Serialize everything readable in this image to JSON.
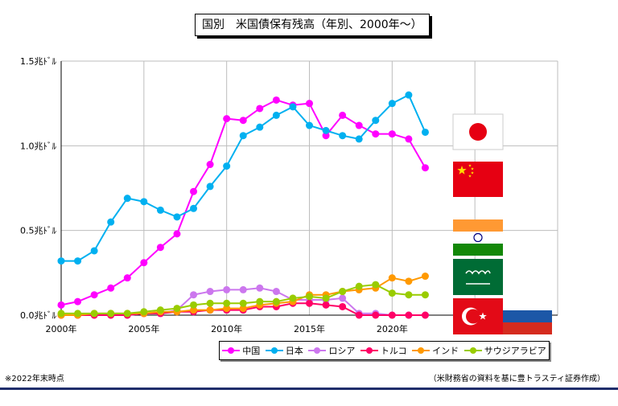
{
  "title": "国別　米国債保有残高（年別、2000年～）",
  "notes": {
    "left": "※2022年末時点",
    "right": "（米財務省の資料を基に豊トラスティ証券作成）"
  },
  "flags": [
    "japan-flag-icon",
    "china-flag-icon",
    "india-flag-icon",
    "saudi-arabia-flag-icon",
    "turkey-flag-icon",
    "russia-flag-icon"
  ],
  "chart_data": {
    "type": "line",
    "title": "国別　米国債保有残高（年別、2000年～）",
    "xlabel": "",
    "ylabel": "",
    "x": [
      2000,
      2001,
      2002,
      2003,
      2004,
      2005,
      2006,
      2007,
      2008,
      2009,
      2010,
      2011,
      2012,
      2013,
      2014,
      2015,
      2016,
      2017,
      2018,
      2019,
      2020,
      2021,
      2022
    ],
    "x_ticks": [
      {
        "value": 2000,
        "label": "2000年"
      },
      {
        "value": 2005,
        "label": "2005年"
      },
      {
        "value": 2010,
        "label": "2010年"
      },
      {
        "value": 2015,
        "label": "2015年"
      },
      {
        "value": 2020,
        "label": "2020年"
      }
    ],
    "xlim": [
      2000,
      2030
    ],
    "y_ticks": [
      {
        "value": 0,
        "label": "0.0兆ﾄﾞﾙ"
      },
      {
        "value": 0.5,
        "label": "0.5兆ﾄﾞﾙ"
      },
      {
        "value": 1.0,
        "label": "1.0兆ﾄﾞﾙ"
      },
      {
        "value": 1.5,
        "label": "1.5兆ﾄﾞﾙ"
      }
    ],
    "ylim": [
      0,
      1.5
    ],
    "grid": true,
    "legend_position": "bottom",
    "series": [
      {
        "name": "中国",
        "color": "#ff00ff",
        "values": [
          0.06,
          0.08,
          0.12,
          0.16,
          0.22,
          0.31,
          0.4,
          0.48,
          0.73,
          0.89,
          1.16,
          1.15,
          1.22,
          1.27,
          1.24,
          1.25,
          1.06,
          1.18,
          1.12,
          1.07,
          1.07,
          1.04,
          0.87
        ]
      },
      {
        "name": "日本",
        "color": "#00b0f0",
        "values": [
          0.32,
          0.32,
          0.38,
          0.55,
          0.69,
          0.67,
          0.62,
          0.58,
          0.63,
          0.76,
          0.88,
          1.06,
          1.11,
          1.18,
          1.23,
          1.12,
          1.09,
          1.06,
          1.04,
          1.15,
          1.25,
          1.3,
          1.08
        ]
      },
      {
        "name": "ロシア",
        "color": "#cc77ee",
        "values": [
          0.0,
          0.0,
          0.0,
          0.0,
          0.0,
          0.01,
          0.01,
          0.03,
          0.12,
          0.14,
          0.15,
          0.15,
          0.16,
          0.14,
          0.09,
          0.09,
          0.09,
          0.1,
          0.01,
          0.01,
          0.0,
          0.0,
          0.0
        ]
      },
      {
        "name": "トルコ",
        "color": "#ff0066",
        "values": [
          0.0,
          0.0,
          0.0,
          0.0,
          0.0,
          0.01,
          0.01,
          0.02,
          0.02,
          0.03,
          0.03,
          0.03,
          0.05,
          0.05,
          0.07,
          0.07,
          0.06,
          0.05,
          0.0,
          0.0,
          0.0,
          0.0,
          0.0
        ]
      },
      {
        "name": "インド",
        "color": "#ff9900",
        "values": [
          0.0,
          0.0,
          0.01,
          0.01,
          0.01,
          0.01,
          0.02,
          0.02,
          0.03,
          0.03,
          0.04,
          0.04,
          0.06,
          0.07,
          0.08,
          0.12,
          0.12,
          0.14,
          0.15,
          0.16,
          0.22,
          0.2,
          0.23
        ]
      },
      {
        "name": "サウジアラビア",
        "color": "#99cc00",
        "values": [
          0.01,
          0.01,
          0.01,
          0.01,
          0.01,
          0.02,
          0.03,
          0.04,
          0.06,
          0.07,
          0.07,
          0.07,
          0.08,
          0.08,
          0.1,
          0.11,
          0.1,
          0.14,
          0.17,
          0.18,
          0.13,
          0.12,
          0.12
        ]
      }
    ]
  }
}
